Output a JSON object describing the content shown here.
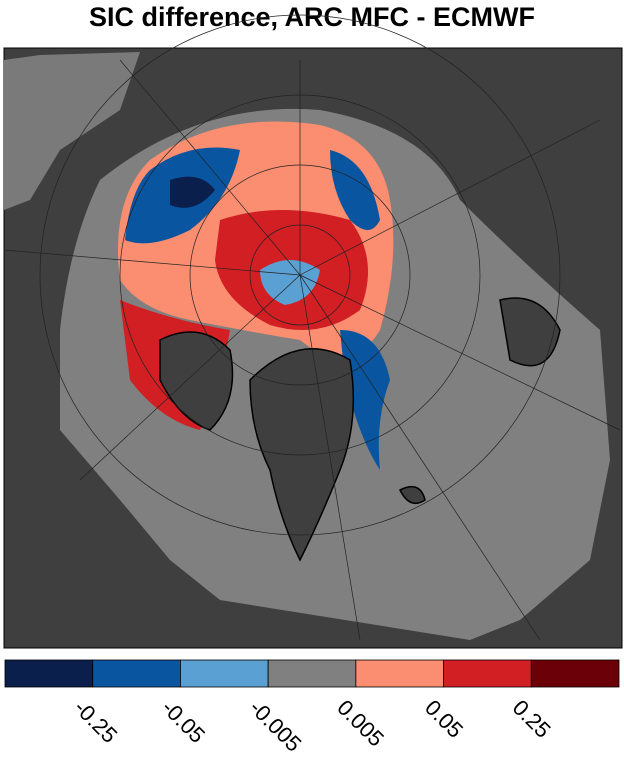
{
  "title": "SIC difference, ARC MFC - ECMWF",
  "colorbar": {
    "colors": [
      "#0b1f4d",
      "#0a55a0",
      "#5aa0d2",
      "#808080",
      "#fb8e70",
      "#d11f24",
      "#6b0008"
    ],
    "ticks": [
      "-0.25",
      "-0.05",
      "-0.005",
      "0.005",
      "0.05",
      "0.25"
    ]
  }
}
